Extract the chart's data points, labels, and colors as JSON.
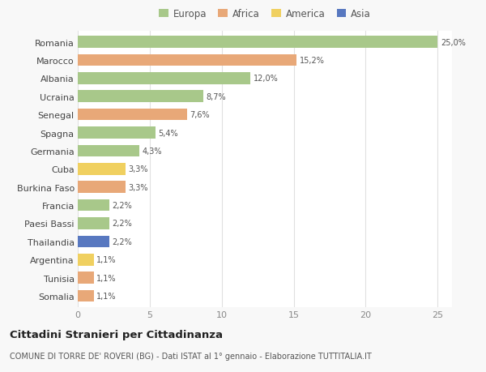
{
  "countries": [
    "Romania",
    "Marocco",
    "Albania",
    "Ucraina",
    "Senegal",
    "Spagna",
    "Germania",
    "Cuba",
    "Burkina Faso",
    "Francia",
    "Paesi Bassi",
    "Thailandia",
    "Argentina",
    "Tunisia",
    "Somalia"
  ],
  "values": [
    25.0,
    15.2,
    12.0,
    8.7,
    7.6,
    5.4,
    4.3,
    3.3,
    3.3,
    2.2,
    2.2,
    2.2,
    1.1,
    1.1,
    1.1
  ],
  "labels": [
    "25,0%",
    "15,2%",
    "12,0%",
    "8,7%",
    "7,6%",
    "5,4%",
    "4,3%",
    "3,3%",
    "3,3%",
    "2,2%",
    "2,2%",
    "2,2%",
    "1,1%",
    "1,1%",
    "1,1%"
  ],
  "continents": [
    "Europa",
    "Africa",
    "Europa",
    "Europa",
    "Africa",
    "Europa",
    "Europa",
    "America",
    "Africa",
    "Europa",
    "Europa",
    "Asia",
    "America",
    "Africa",
    "Africa"
  ],
  "continent_colors": {
    "Europa": "#a8c88a",
    "Africa": "#e8a878",
    "America": "#f0d060",
    "Asia": "#5878c0"
  },
  "legend_order": [
    "Europa",
    "Africa",
    "America",
    "Asia"
  ],
  "title": "Cittadini Stranieri per Cittadinanza",
  "subtitle": "COMUNE DI TORRE DE' ROVERI (BG) - Dati ISTAT al 1° gennaio - Elaborazione TUTTITALIA.IT",
  "xlim": [
    0,
    26
  ],
  "xticks": [
    0,
    5,
    10,
    15,
    20,
    25
  ],
  "background_color": "#f8f8f8",
  "plot_background": "#ffffff",
  "grid_color": "#e0e0e0",
  "bar_height": 0.65
}
